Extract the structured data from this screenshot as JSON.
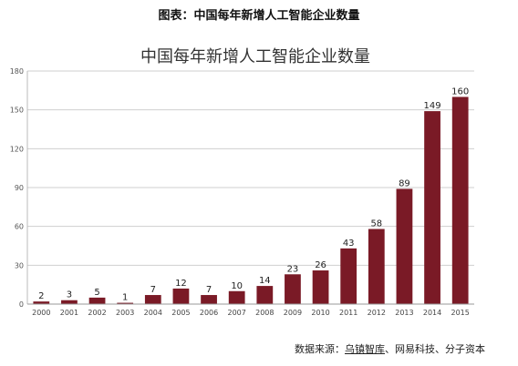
{
  "caption": "图表：中国每年新增人工智能企业数量",
  "source": {
    "prefix": "数据来源：",
    "name1": "乌镇智库",
    "rest": "、网易科技、分子资本"
  },
  "chart_data": {
    "type": "bar",
    "title": "中国每年新增人工智能企业数量",
    "categories": [
      "2000",
      "2001",
      "2002",
      "2003",
      "2004",
      "2005",
      "2006",
      "2007",
      "2008",
      "2009",
      "2010",
      "2011",
      "2012",
      "2013",
      "2014",
      "2015"
    ],
    "values": [
      2,
      3,
      5,
      1,
      7,
      12,
      7,
      10,
      14,
      23,
      26,
      43,
      58,
      89,
      149,
      160
    ],
    "ylim": [
      0,
      180
    ],
    "yticks": [
      0,
      30,
      60,
      90,
      120,
      150,
      180
    ],
    "grid": true,
    "bar_color": "#7a1a26",
    "xlabel": "",
    "ylabel": ""
  }
}
